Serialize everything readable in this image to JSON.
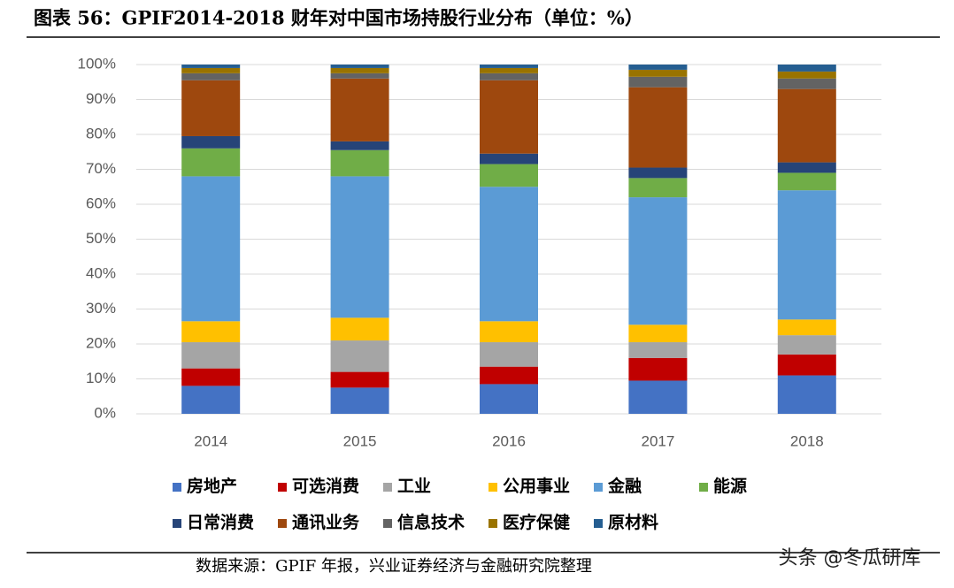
{
  "chart_data": {
    "type": "stacked_bar",
    "title": "图表 56：GPIF2014-2018 财年对中国市场持股行业分布（单位：%）",
    "source": "数据来源：GPIF 年报，兴业证券经济与金融研究院整理",
    "watermark": "头条 @冬瓜研库",
    "categories": [
      "2014",
      "2015",
      "2016",
      "2017",
      "2018"
    ],
    "series": [
      {
        "name": "房地产",
        "color": "#4472c4",
        "values": [
          8,
          7.5,
          8.5,
          9.5,
          11
        ]
      },
      {
        "name": "可选消费",
        "color": "#c00000",
        "values": [
          5,
          4.5,
          5,
          6.5,
          6
        ]
      },
      {
        "name": "工业",
        "color": "#a5a5a5",
        "values": [
          7.5,
          9,
          7,
          4.5,
          5.5
        ]
      },
      {
        "name": "公用事业",
        "color": "#ffc000",
        "values": [
          6,
          6.5,
          6,
          5,
          4.5
        ]
      },
      {
        "name": "金融",
        "color": "#5b9bd5",
        "values": [
          41.5,
          40.5,
          38.5,
          36.5,
          37
        ]
      },
      {
        "name": "能源",
        "color": "#70ad47",
        "values": [
          8,
          7.5,
          6.5,
          5.5,
          5
        ]
      },
      {
        "name": "日常消费",
        "color": "#264478",
        "values": [
          3.5,
          2.5,
          3,
          3,
          3
        ]
      },
      {
        "name": "通讯业务",
        "color": "#9e480e",
        "values": [
          16,
          18,
          21,
          23,
          21
        ]
      },
      {
        "name": "信息技术",
        "color": "#636363",
        "values": [
          2,
          1.5,
          2,
          3,
          3
        ]
      },
      {
        "name": "医疗保健",
        "color": "#997300",
        "values": [
          1.5,
          1.5,
          1.5,
          2,
          2
        ]
      },
      {
        "name": "原材料",
        "color": "#255e91",
        "values": [
          1,
          1,
          1,
          1.5,
          2
        ]
      }
    ],
    "ylim": [
      0,
      100
    ],
    "yticks": [
      {
        "value": 0,
        "label": "0%"
      },
      {
        "value": 10,
        "label": "10%"
      },
      {
        "value": 20,
        "label": "20%"
      },
      {
        "value": 30,
        "label": "30%"
      },
      {
        "value": 40,
        "label": "40%"
      },
      {
        "value": 50,
        "label": "50%"
      },
      {
        "value": 60,
        "label": "60%"
      },
      {
        "value": 70,
        "label": "70%"
      },
      {
        "value": 80,
        "label": "80%"
      },
      {
        "value": 90,
        "label": "90%"
      },
      {
        "value": 100,
        "label": "100%"
      }
    ],
    "grid": true
  }
}
